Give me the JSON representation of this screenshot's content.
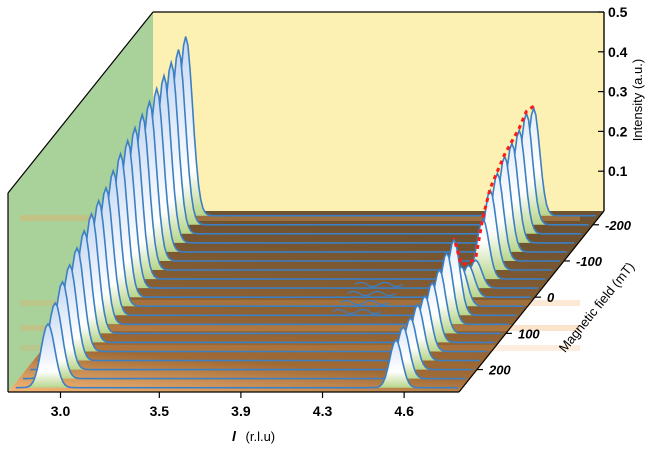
{
  "chart_data": {
    "type": "3d-waterfall",
    "x_axis": {
      "label_symbol": "l",
      "label_unit": "(r.l.u)",
      "ticks": [
        "3.0",
        "3.5",
        "3.9",
        "4.3",
        "4.6"
      ]
    },
    "y_axis": {
      "label": "Intensity (a.u.)",
      "ticks": [
        "0.1",
        "0.2",
        "0.3",
        "0.4",
        "0.5"
      ],
      "range": [
        0,
        0.5
      ]
    },
    "z_axis": {
      "label": "Magnetic field (mT)",
      "ticks": [
        "-200",
        "-100",
        "0",
        "100",
        "200"
      ]
    },
    "series": [
      {
        "field": 250,
        "peak1": 0.16,
        "peak2": 0.12
      },
      {
        "field": 225,
        "peak1": 0.19,
        "peak2": 0.13
      },
      {
        "field": 200,
        "peak1": 0.22,
        "peak2": 0.13
      },
      {
        "field": 175,
        "peak1": 0.24,
        "peak2": 0.14
      },
      {
        "field": 150,
        "peak1": 0.26,
        "peak2": 0.14
      },
      {
        "field": 125,
        "peak1": 0.28,
        "peak2": 0.15
      },
      {
        "field": 100,
        "peak1": 0.3,
        "peak2": 0.16
      },
      {
        "field": 75,
        "peak1": 0.31,
        "peak2": 0.18
      },
      {
        "field": 50,
        "peak1": 0.32,
        "peak2": 0.19
      },
      {
        "field": 25,
        "peak1": 0.34,
        "peak2": 0.1
      },
      {
        "field": 0,
        "peak1": 0.36,
        "peak2": 0.08
      },
      {
        "field": -25,
        "peak1": 0.37,
        "peak2": 0.07
      },
      {
        "field": -50,
        "peak1": 0.38,
        "peak2": 0.15
      },
      {
        "field": -75,
        "peak1": 0.39,
        "peak2": 0.2
      },
      {
        "field": -100,
        "peak1": 0.4,
        "peak2": 0.22
      },
      {
        "field": -125,
        "peak1": 0.41,
        "peak2": 0.24
      },
      {
        "field": -150,
        "peak1": 0.42,
        "peak2": 0.25
      },
      {
        "field": -175,
        "peak1": 0.43,
        "peak2": 0.26
      },
      {
        "field": -200,
        "peak1": 0.44,
        "peak2": 0.28
      },
      {
        "field": -225,
        "peak1": 0.45,
        "peak2": 0.27
      }
    ],
    "colors": {
      "curve": "#3b7fc4",
      "back_wall": "#fcf0b2",
      "side_wall": "#a9d19a",
      "floor_dark": "#7c5b33",
      "floor_light": "#f2a860",
      "trend": "#ff1a1a"
    }
  }
}
